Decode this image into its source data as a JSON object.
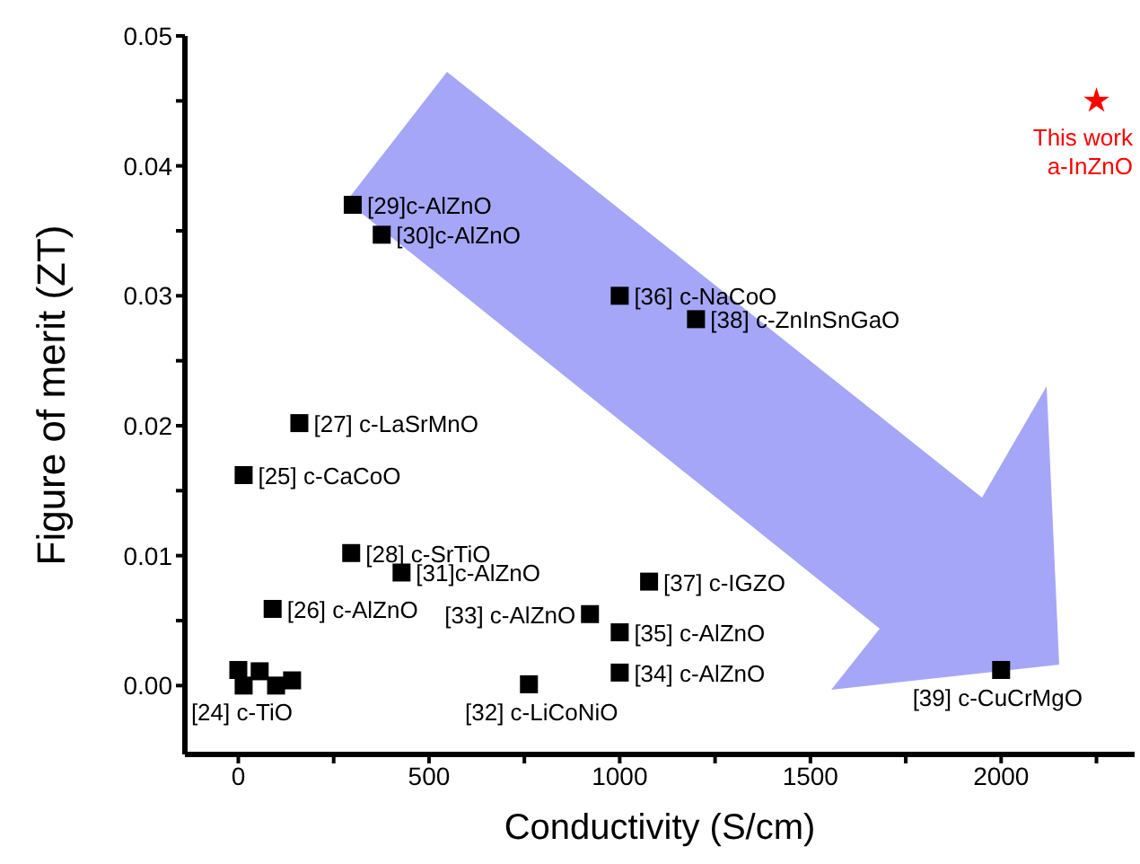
{
  "chart_data": {
    "type": "scatter",
    "xlabel": "Conductivity (S/cm)",
    "ylabel": "Figure of merit (ZT)",
    "xlim": [
      -140,
      2350
    ],
    "ylim": [
      -0.0053,
      0.05
    ],
    "xticks": [
      0,
      {
        "value": 250,
        "label": null
      },
      500,
      {
        "value": 750,
        "label": null
      },
      1000,
      {
        "value": 1250,
        "label": null
      },
      1500,
      {
        "value": 1750,
        "label": null
      },
      2000,
      {
        "value": 2250,
        "label": null
      }
    ],
    "yticks": [
      {
        "value": 0,
        "label": "0.00"
      },
      {
        "value": 0.005,
        "label": null
      },
      {
        "value": 0.01,
        "label": "0.01"
      },
      {
        "value": 0.015,
        "label": null
      },
      {
        "value": 0.02,
        "label": "0.02"
      },
      {
        "value": 0.025,
        "label": null
      },
      {
        "value": 0.03,
        "label": "0.03"
      },
      {
        "value": 0.035,
        "label": null
      },
      {
        "value": 0.04,
        "label": "0.04"
      },
      {
        "value": 0.045,
        "label": null
      },
      {
        "value": 0.05,
        "label": "0.05"
      }
    ],
    "grid": false,
    "legend": false,
    "series": [
      {
        "color": "#000000",
        "marker": "square",
        "x": [
          300,
          376,
          1000,
          1200,
          160,
          14,
          296,
          428,
          90,
          922,
          1077,
          1000,
          1000,
          762,
          2000,
          0,
          14,
          56,
          99,
          141
        ],
        "values": [
          0.037,
          0.0347,
          0.03,
          0.0282,
          0.0202,
          0.0162,
          0.0102,
          0.0087,
          0.0059,
          0.0055,
          0.008,
          0.0041,
          0.001,
          0.0001,
          0.0012,
          0.0012,
          0.0,
          0.0011,
          0.0,
          0.0004
        ]
      },
      {
        "name": "This work a-InZnO",
        "color": "#ff0000",
        "marker": "star",
        "x": [
          2250
        ],
        "values": [
          0.045
        ]
      }
    ],
    "annotations": [
      {
        "text": "[29]c-AlZnO",
        "x": 300,
        "y": 0.037
      },
      {
        "text": "[30]c-AlZnO",
        "x": 376,
        "y": 0.0347
      },
      {
        "text": "[36] c-NaCoO",
        "x": 1000,
        "y": 0.03
      },
      {
        "text": "[38] c-ZnInSnGaO",
        "x": 1200,
        "y": 0.0282
      },
      {
        "text": "[27] c-LaSrMnO",
        "x": 160,
        "y": 0.0202
      },
      {
        "text": "[25] c-CaCoO",
        "x": 14,
        "y": 0.0162
      },
      {
        "text": "[28] c-SrTiO",
        "x": 296,
        "y": 0.0102
      },
      {
        "text": "[31]c-AlZnO",
        "x": 428,
        "y": 0.0087
      },
      {
        "text": "[26] c-AlZnO",
        "x": 90,
        "y": 0.0059
      },
      {
        "text": "[33] c-AlZnO",
        "x": 922,
        "y": 0.0055
      },
      {
        "text": "[37] c-IGZO",
        "x": 1077,
        "y": 0.008
      },
      {
        "text": "[35] c-AlZnO",
        "x": 1000,
        "y": 0.0041
      },
      {
        "text": "[34] c-AlZnO",
        "x": 1000,
        "y": 0.001
      },
      {
        "text": "[32] c-LiCoNiO",
        "x": 762,
        "y": 0.0001
      },
      {
        "text": "[24] c-TiO",
        "x": 0,
        "y": 0.0001
      },
      {
        "text": "[39] c-CuCrMgO",
        "x": 2000,
        "y": 0.0012
      }
    ]
  }
}
